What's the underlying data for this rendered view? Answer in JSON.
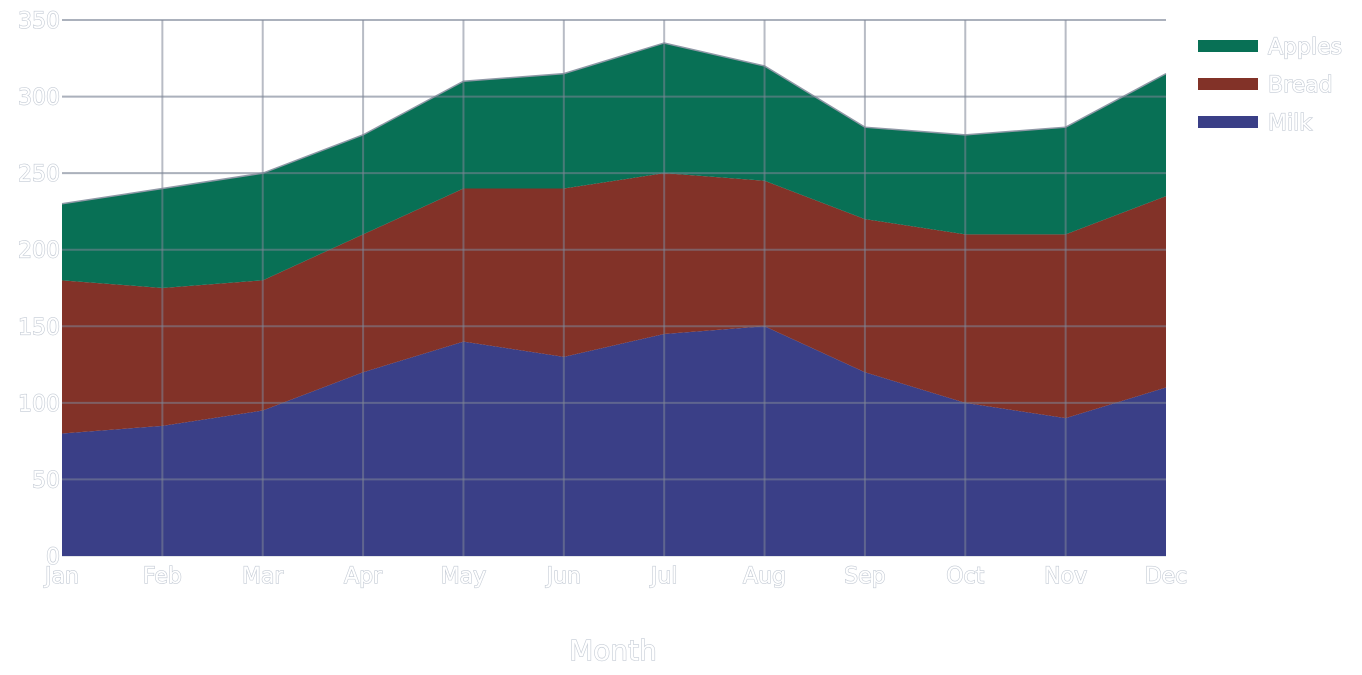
{
  "chart_data": {
    "type": "area",
    "stacked": true,
    "title": "",
    "xlabel": "Month",
    "ylabel": "",
    "categories": [
      "Jan",
      "Feb",
      "Mar",
      "Apr",
      "May",
      "Jun",
      "Jul",
      "Aug",
      "Sep",
      "Oct",
      "Nov",
      "Dec"
    ],
    "ylim": [
      0,
      350
    ],
    "yticks": [
      0,
      50,
      100,
      150,
      200,
      250,
      300,
      350
    ],
    "grid": true,
    "legend_position": "top-right",
    "series": [
      {
        "name": "Milk",
        "color": "#3a3f87",
        "values": [
          80,
          85,
          95,
          120,
          140,
          130,
          145,
          150,
          120,
          100,
          90,
          110
        ]
      },
      {
        "name": "Bread",
        "color": "#823228",
        "values": [
          100,
          90,
          85,
          90,
          100,
          110,
          105,
          95,
          100,
          110,
          120,
          125
        ]
      },
      {
        "name": "Apples",
        "color": "#087055",
        "values": [
          50,
          65,
          70,
          65,
          70,
          75,
          85,
          75,
          60,
          65,
          70,
          80
        ]
      }
    ],
    "legend_order": [
      "Apples",
      "Bread",
      "Milk"
    ]
  }
}
